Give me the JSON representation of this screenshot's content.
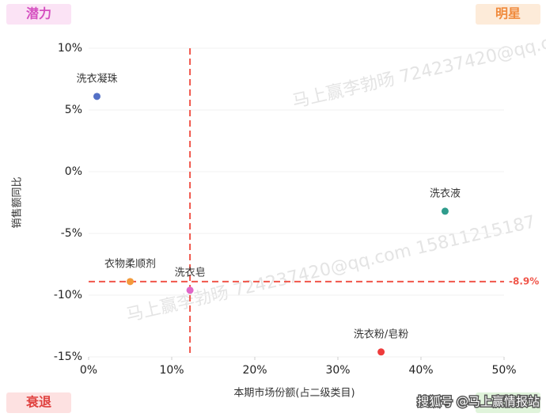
{
  "chart_data": {
    "type": "scatter",
    "x_label": "本期市场份额(占二级类目)",
    "y_label": "销售额同比",
    "series": [
      {
        "name": "洗衣凝珠",
        "color": "#5470c6",
        "x": [
          1.0
        ],
        "values": [
          6.1
        ]
      },
      {
        "name": "洗衣液",
        "color": "#2f9c8c",
        "x": [
          42.9
        ],
        "values": [
          -3.2
        ]
      },
      {
        "name": "衣物柔顺剂",
        "color": "#f39a3c",
        "x": [
          5.0
        ],
        "values": [
          -8.9
        ]
      },
      {
        "name": "洗衣皂",
        "color": "#e066c8",
        "x": [
          12.2
        ],
        "values": [
          -9.6
        ]
      },
      {
        "name": "洗衣粉/皂粉",
        "color": "#ee3b3b",
        "x": [
          35.2
        ],
        "values": [
          -14.6
        ]
      }
    ],
    "xlim": [
      0,
      50
    ],
    "xticks": [
      {
        "value": 0,
        "label": "0%"
      },
      {
        "value": 10,
        "label": "10%"
      },
      {
        "value": 20,
        "label": "20%"
      },
      {
        "value": 30,
        "label": "30%"
      },
      {
        "value": 40,
        "label": "40%"
      },
      {
        "value": 50,
        "label": "50%"
      }
    ],
    "ylim": [
      -15,
      10
    ],
    "yticks": [
      {
        "value": -15,
        "label": "-15%"
      },
      {
        "value": -10,
        "label": "-10%"
      },
      {
        "value": -5,
        "label": "-5%"
      },
      {
        "value": 0,
        "label": "0%"
      },
      {
        "value": 5,
        "label": "5%"
      },
      {
        "value": 10,
        "label": "10%"
      }
    ],
    "grid": true,
    "ref_x": 12.2,
    "ref_y": {
      "value": -8.9,
      "label": "-8.9%"
    },
    "ref_color": "#f0564a",
    "quadrants": {
      "top_left": "潜力",
      "top_right": "明星",
      "bottom_left": "衰退"
    },
    "watermark": "马上赢李勃旸 724237420@qq.com 15811215187",
    "footer": "搜狐号 @马上赢情报站"
  }
}
